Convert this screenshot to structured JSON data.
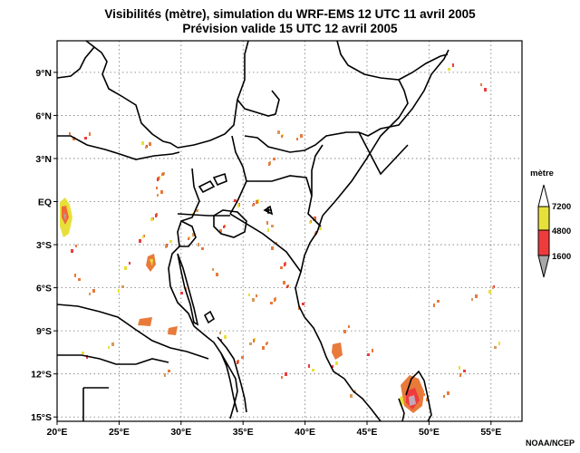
{
  "title_line1": "Visibilités (mètre), simulation du WRF-EMS 12 UTC 11 avril 2005",
  "title_line2": "Prévision valide 15 UTC 12 avril 2005",
  "credit": "NOAA/NCEP",
  "map": {
    "lon_range": [
      20,
      57.5
    ],
    "lat_range": [
      -15.3,
      11.2
    ],
    "lon_ticks": [
      {
        "value": 20,
        "label": "20°E"
      },
      {
        "value": 25,
        "label": "25°E"
      },
      {
        "value": 30,
        "label": "30°E"
      },
      {
        "value": 35,
        "label": "35°E"
      },
      {
        "value": 40,
        "label": "40°E"
      },
      {
        "value": 45,
        "label": "45°E"
      },
      {
        "value": 50,
        "label": "50°E"
      },
      {
        "value": 55,
        "label": "55°E"
      }
    ],
    "lat_ticks": [
      {
        "value": 9,
        "label": "9°N"
      },
      {
        "value": 6,
        "label": "6°N"
      },
      {
        "value": 3,
        "label": "3°N"
      },
      {
        "value": 0,
        "label": "EQ"
      },
      {
        "value": -3,
        "label": "3°S"
      },
      {
        "value": -6,
        "label": "6°S"
      },
      {
        "value": -9,
        "label": "9°S"
      },
      {
        "value": -12,
        "label": "12°S"
      },
      {
        "value": -15,
        "label": "15°S"
      }
    ],
    "grid": "dotted"
  },
  "legend": {
    "title": "mètre",
    "levels": [
      {
        "label": "7200",
        "color": "#e8e03a"
      },
      {
        "label": "4800",
        "color": "#ef3b3b"
      },
      {
        "label": "1600",
        "color": "#a8a8a8"
      }
    ],
    "top_color": "#ffffff"
  }
}
